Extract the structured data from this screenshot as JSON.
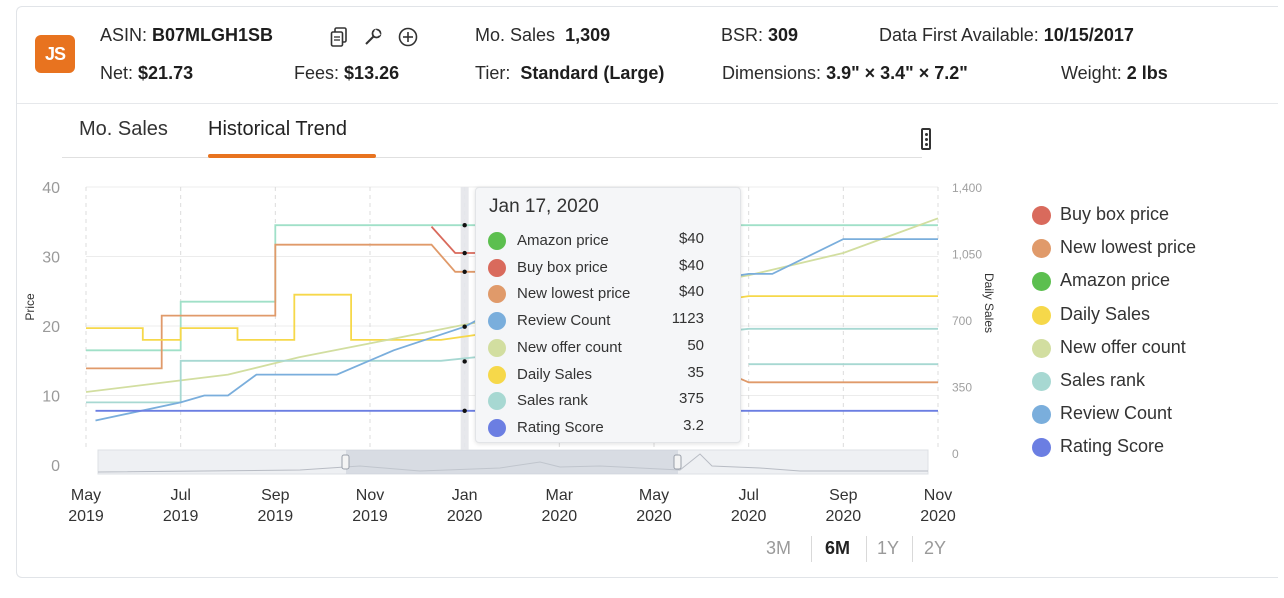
{
  "header": {
    "logo_text": "JS",
    "asin_label": "ASIN:",
    "asin_value": "B07MLGH1SB",
    "mo_sales_label": "Mo. Sales",
    "mo_sales_value": "1,309",
    "bsr_label": "BSR:",
    "bsr_value": "309",
    "data_first_label": "Data First Available:",
    "data_first_value": "10/15/2017",
    "net_label": "Net:",
    "net_value": "$21.73",
    "fees_label": "Fees:",
    "fees_value": "$13.26",
    "tier_label": "Tier:",
    "tier_value": "Standard (Large)",
    "dimensions_label": "Dimensions:",
    "dimensions_value": "3.9\" × 3.4\" × 7.2\"",
    "weight_label": "Weight:",
    "weight_value": "2 lbs",
    "icons": [
      "copy-icon",
      "tools-icon",
      "add-circle-icon"
    ]
  },
  "tabs": [
    {
      "label": "Mo. Sales",
      "active": false
    },
    {
      "label": "Historical Trend",
      "active": true
    }
  ],
  "menu_icon": "kebab-menu-icon",
  "tooltip": {
    "date": "Jan 17, 2020",
    "rows": [
      {
        "label": "Amazon price",
        "value": "$40",
        "color": "#5cbf4f"
      },
      {
        "label": "Buy box price",
        "value": "$40",
        "color": "#d96a5c"
      },
      {
        "label": "New lowest price",
        "value": "$40",
        "color": "#e09a6a"
      },
      {
        "label": "Review Count",
        "value": "1123",
        "color": "#7aaedc"
      },
      {
        "label": "New offer count",
        "value": "50",
        "color": "#d2dea0"
      },
      {
        "label": "Daily Sales",
        "value": "35",
        "color": "#f6d84a"
      },
      {
        "label": "Sales rank",
        "value": "375",
        "color": "#a7d8d2"
      },
      {
        "label": "Rating Score",
        "value": "3.2",
        "color": "#6b7ee2"
      }
    ]
  },
  "legend": [
    {
      "label": "Buy box price",
      "color": "#d96a5c"
    },
    {
      "label": "New lowest price",
      "color": "#e09a6a"
    },
    {
      "label": "Amazon price",
      "color": "#5cbf4f"
    },
    {
      "label": "Daily Sales",
      "color": "#f6d84a"
    },
    {
      "label": "New offer count",
      "color": "#d2dea0"
    },
    {
      "label": "Sales rank",
      "color": "#a7d8d2"
    },
    {
      "label": "Review Count",
      "color": "#7aaedc"
    },
    {
      "label": "Rating Score",
      "color": "#6b7ee2"
    }
  ],
  "range_buttons": [
    {
      "label": "3M",
      "active": false
    },
    {
      "label": "6M",
      "active": true
    },
    {
      "label": "1Y",
      "active": false
    },
    {
      "label": "2Y",
      "active": false
    }
  ],
  "chart_data": {
    "type": "line",
    "ylabel": "Price",
    "y2label": "Daily Sales",
    "ylim": [
      0,
      40
    ],
    "y2lim": [
      0,
      1400
    ],
    "y_ticks": [
      "0",
      "10",
      "20",
      "30",
      "40"
    ],
    "y2_ticks": [
      "0",
      "350",
      "700",
      "1,050",
      "1,400"
    ],
    "x_ticks": [
      {
        "month": "May",
        "year": "2019",
        "t": 0
      },
      {
        "month": "Jul",
        "year": "2019",
        "t": 2
      },
      {
        "month": "Sep",
        "year": "2019",
        "t": 4
      },
      {
        "month": "Nov",
        "year": "2019",
        "t": 6
      },
      {
        "month": "Jan",
        "year": "2020",
        "t": 8
      },
      {
        "month": "Mar",
        "year": "2020",
        "t": 10
      },
      {
        "month": "May",
        "year": "2020",
        "t": 12
      },
      {
        "month": "Jul",
        "year": "2020",
        "t": 14
      },
      {
        "month": "Sep",
        "year": "2020",
        "t": 16
      },
      {
        "month": "Nov",
        "year": "2020",
        "t": 18
      }
    ],
    "x_unit": "months since May 2019",
    "grid": true,
    "series": [
      {
        "name": "Amazon price",
        "color": "#a0e0c8",
        "points": [
          [
            0,
            16.5
          ],
          [
            2,
            16.5
          ],
          [
            2,
            23.5
          ],
          [
            4,
            23.5
          ],
          [
            4,
            34.5
          ],
          [
            8,
            34.5
          ],
          [
            14,
            34.5
          ],
          [
            18,
            34.5
          ]
        ]
      },
      {
        "name": "New lowest price",
        "color": "#e09a6a",
        "points": [
          [
            0,
            13.9
          ],
          [
            1.6,
            13.9
          ],
          [
            1.6,
            21.5
          ],
          [
            4,
            21.5
          ],
          [
            4,
            31.7
          ],
          [
            7.3,
            31.7
          ],
          [
            7.3,
            31.7
          ],
          [
            7.8,
            27.8
          ],
          [
            8.5,
            27.8
          ],
          [
            14,
            11.9
          ],
          [
            18,
            11.9
          ]
        ]
      },
      {
        "name": "Buy box price",
        "color": "#d96a5c",
        "points": [
          [
            7.3,
            34.3
          ],
          [
            7.8,
            30.5
          ],
          [
            8.5,
            30.5
          ]
        ]
      },
      {
        "name": "Daily Sales",
        "color": "#f6d84a",
        "points": [
          [
            0,
            19.7
          ],
          [
            1.2,
            19.7
          ],
          [
            1.2,
            18
          ],
          [
            2,
            18
          ],
          [
            2,
            19.7
          ],
          [
            3.2,
            19.7
          ],
          [
            3.2,
            18
          ],
          [
            4.4,
            18
          ],
          [
            4.4,
            24.5
          ],
          [
            5.6,
            24.5
          ],
          [
            5.6,
            18
          ],
          [
            7.5,
            18
          ],
          [
            14,
            24.3
          ],
          [
            18,
            24.3
          ]
        ]
      },
      {
        "name": "New offer count",
        "color": "#d2dea0",
        "points": [
          [
            0,
            10.5
          ],
          [
            3,
            13
          ],
          [
            4.5,
            15.5
          ],
          [
            6,
            17.5
          ],
          [
            8,
            20.2
          ],
          [
            14,
            27.3
          ],
          [
            16,
            30.5
          ],
          [
            18,
            35.5
          ]
        ]
      },
      {
        "name": "Sales rank",
        "color": "#a7d8d2",
        "points": [
          [
            0,
            9
          ],
          [
            2,
            9
          ],
          [
            2,
            15
          ],
          [
            7.5,
            15
          ],
          [
            14,
            19.6
          ],
          [
            18,
            19.6
          ]
        ]
      },
      {
        "name": "Review Count",
        "color": "#7aaedc",
        "points": [
          [
            0.2,
            6.4
          ],
          [
            2,
            9
          ],
          [
            2.5,
            10
          ],
          [
            3,
            10
          ],
          [
            3.6,
            13
          ],
          [
            5.3,
            13
          ],
          [
            6.5,
            16.5
          ],
          [
            8,
            19.9
          ],
          [
            8.5,
            21.7
          ],
          [
            14,
            27.5
          ],
          [
            14.5,
            27.5
          ],
          [
            16,
            32.5
          ],
          [
            18,
            32.5
          ]
        ]
      },
      {
        "name": "Rating Score",
        "color": "#6b7ee2",
        "points": [
          [
            0.2,
            7.8
          ],
          [
            18,
            7.8
          ]
        ]
      },
      {
        "name": "Sales rank (lower)",
        "color": "#a7d8d2",
        "points": [
          [
            14,
            14.5
          ],
          [
            18,
            14.5
          ]
        ]
      }
    ],
    "hover_t": 8.0
  }
}
